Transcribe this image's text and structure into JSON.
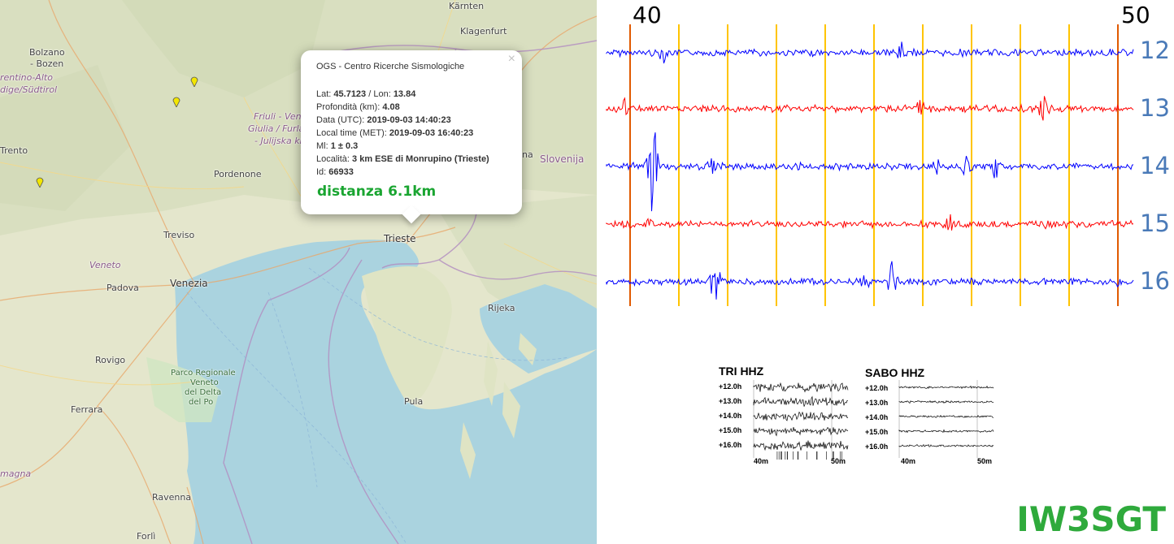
{
  "map": {
    "labels": {
      "kaernten": "Kärnten",
      "klagenfurt": "Klagenfurt",
      "bolzano": "Bolzano",
      "bozen": "- Bozen",
      "trentino": "rentino-Alto",
      "adige": "dige/Südtirol",
      "friuli": "Friuli - Vene",
      "giulia": "Giulia / Furla",
      "julijska": "- Julijska kraj",
      "trento": "Trento",
      "pordenone": "Pordenone",
      "slovenija": "Slovenija",
      "na": "na",
      "treviso": "Treviso",
      "trieste": "Trieste",
      "veneto": "Veneto",
      "padova": "Padova",
      "venezia": "Venezia",
      "rijeka": "Rijeka",
      "rovigo": "Rovigo",
      "parco1": "Parco Regionale",
      "parco2": "Veneto",
      "parco3": "del Delta",
      "parco4": "del Po",
      "pula": "Pula",
      "ferrara": "Ferrara",
      "magna": "magna",
      "ravenna": "Ravenna",
      "forli": "Forlì"
    },
    "popup": {
      "close": "×",
      "title": "OGS - Centro Ricerche Sismologiche",
      "lat_label": "Lat: ",
      "lat": "45.7123",
      "lon_label": " / Lon: ",
      "lon": "13.84",
      "depth_label": "Profondità (km): ",
      "depth": "4.08",
      "date_label": "Data (UTC): ",
      "date": "2019-09-03 14:40:23",
      "local_label": "Local time (MET): ",
      "local": "2019-09-03 16:40:23",
      "ml_label": "Ml: ",
      "ml": "1 ± 0.3",
      "loc_label": "Località: ",
      "loc": "3 km ESE di Monrupino (Trieste)",
      "id_label": "Id: ",
      "id": "66933",
      "distance": "distanza 6.1km"
    }
  },
  "seismogram": {
    "minute_labels": [
      "40",
      "50"
    ],
    "hour_labels": [
      "12",
      "13",
      "14",
      "15",
      "16"
    ],
    "colors": {
      "blue": "#0000ff",
      "red": "#ff0000",
      "gold": "#ffc400",
      "marker": "#e05a00",
      "hour_text": "#4a7ab8"
    }
  },
  "thumbs": {
    "tri": {
      "title": "TRI HHZ",
      "rows": [
        "+12.0h",
        "+13.0h",
        "+14.0h",
        "+15.0h",
        "+16.0h"
      ],
      "axis": [
        "40m",
        "50m"
      ]
    },
    "sabo": {
      "title": "SABO HHZ",
      "rows": [
        "+12.0h",
        "+13.0h",
        "+14.0h",
        "+15.0h",
        "+16.0h"
      ],
      "axis": [
        "40m",
        "50m"
      ]
    }
  },
  "callsign": "IW3SGT"
}
